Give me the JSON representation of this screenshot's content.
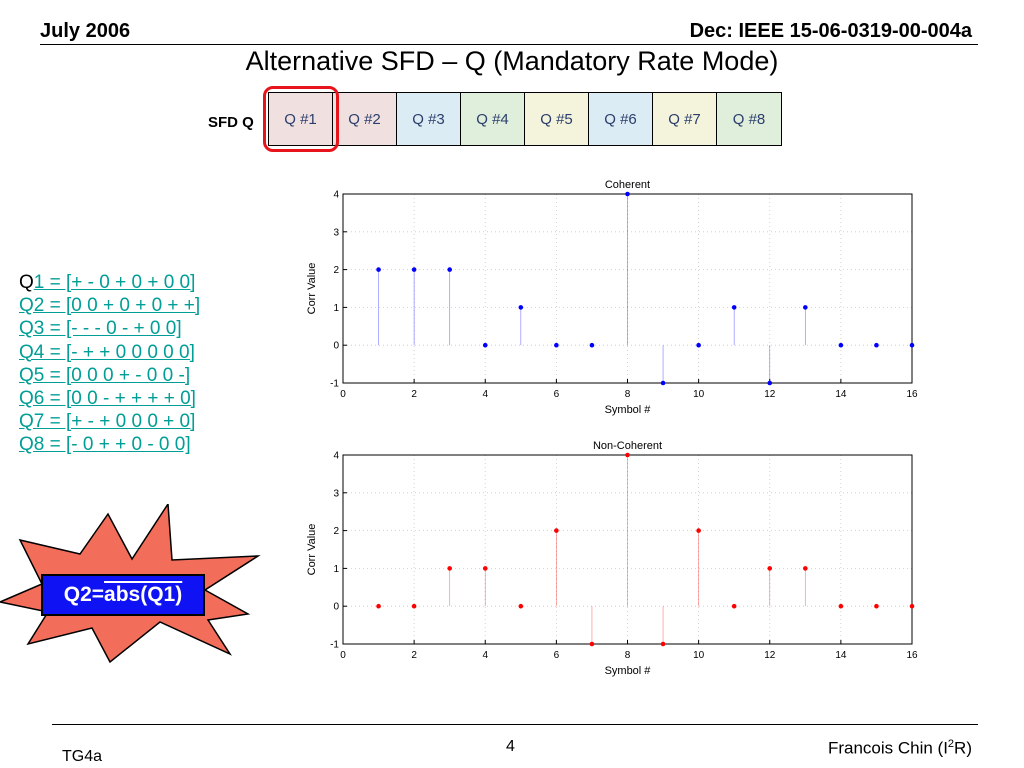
{
  "header": {
    "left": "July 2006",
    "right": "Dec: IEEE 15-06-0319-00-004a"
  },
  "title": "Alternative SFD – Q (Mandatory Rate Mode)",
  "sfd": {
    "label": "SFD Q",
    "cells": [
      {
        "label": "Q #1",
        "color": "#f0e0e0"
      },
      {
        "label": "Q #2",
        "color": "#f0e0e0"
      },
      {
        "label": "Q #3",
        "color": "#dcecf4"
      },
      {
        "label": "Q #4",
        "color": "#e0eedc"
      },
      {
        "label": "Q #5",
        "color": "#f4f4dc"
      },
      {
        "label": "Q #6",
        "color": "#dcecf4"
      },
      {
        "label": "Q #7",
        "color": "#f4f4dc"
      },
      {
        "label": "Q #8",
        "color": "#e0eedc"
      }
    ],
    "highlight_color": "#e8141c"
  },
  "q_list": [
    {
      "prefix": "Q",
      "text": "1 = [+ - 0 + 0 + 0 0]"
    },
    {
      "prefix": "",
      "text": "Q2 = [0 0 + 0 + 0 + +]"
    },
    {
      "prefix": "",
      "text": "Q3 = [- - - 0 - + 0 0]"
    },
    {
      "prefix": "",
      "text": "Q4 = [- + + 0 0 0 0 0]"
    },
    {
      "prefix": "",
      "text": "Q5 = [0 0 0 + - 0 0 -]"
    },
    {
      "prefix": "",
      "text": "Q6 = [0 0 - + + + + 0]"
    },
    {
      "prefix": "",
      "text": "Q7 = [+ - + 0 0 0 + 0]"
    },
    {
      "prefix": "",
      "text": "Q8 = [- 0 + + 0 - 0 0]"
    }
  ],
  "callout": {
    "prefix": "Q2=",
    "overlined": "abs(Q1)",
    "star_color": "#f26e5b",
    "box_color": "#0f12f2"
  },
  "chart_data": [
    {
      "type": "scatter",
      "style": "stem",
      "title": "Coherent",
      "xlabel": "Symbol #",
      "ylabel": "Corr Value",
      "xlim": [
        0,
        16
      ],
      "ylim": [
        -1,
        4
      ],
      "xticks": [
        "0",
        "2",
        "4",
        "6",
        "8",
        "10",
        "12",
        "14",
        "16"
      ],
      "yticks": [
        "-1",
        "0",
        "1",
        "2",
        "3",
        "4"
      ],
      "grid": true,
      "color": "#0000ff",
      "x": [
        1,
        2,
        3,
        4,
        5,
        6,
        7,
        8,
        9,
        10,
        11,
        12,
        13,
        14,
        15,
        16
      ],
      "y": [
        2,
        2,
        2,
        0,
        1,
        0,
        0,
        4,
        -1,
        0,
        1,
        -1,
        1,
        0,
        0,
        0
      ]
    },
    {
      "type": "scatter",
      "style": "stem",
      "title": "Non-Coherent",
      "xlabel": "Symbol #",
      "ylabel": "Corr Value",
      "xlim": [
        0,
        16
      ],
      "ylim": [
        -1,
        4
      ],
      "xticks": [
        "0",
        "2",
        "4",
        "6",
        "8",
        "10",
        "12",
        "14",
        "16"
      ],
      "yticks": [
        "-1",
        "0",
        "1",
        "2",
        "3",
        "4"
      ],
      "grid": true,
      "color": "#ff0000",
      "x": [
        1,
        2,
        3,
        4,
        5,
        6,
        7,
        8,
        9,
        10,
        11,
        12,
        13,
        14,
        15,
        16
      ],
      "y": [
        0,
        0,
        1,
        1,
        0,
        2,
        -1,
        4,
        -1,
        2,
        0,
        1,
        1,
        0,
        0,
        0
      ]
    }
  ],
  "footer": {
    "left": "TG4a",
    "page": "4",
    "author_main": "Francois Chin (I",
    "author_sup": "2",
    "author_end": "R)"
  }
}
